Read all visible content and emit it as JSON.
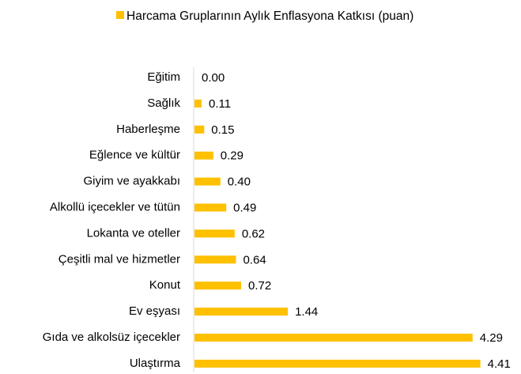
{
  "chart_data": {
    "type": "bar",
    "orientation": "horizontal",
    "categories": [
      "Eğitim",
      "Sağlık",
      "Haberleşme",
      "Eğlence ve kültür",
      "Giyim ve ayakkabı",
      "Alkollü içecekler ve tütün",
      "Lokanta ve oteller",
      "Çeşitli mal ve hizmetler",
      "Konut",
      "Ev eşyası",
      "Gıda ve alkolsüz içecekler",
      "Ulaştırma"
    ],
    "series": [
      {
        "name": "Harcama Gruplarının Aylık Enflasyona Katkısı (puan)",
        "color": "#FFC000",
        "values": [
          0,
          0.11,
          0.15,
          0.29,
          0.4,
          0.49,
          0.62,
          0.64,
          0.72,
          1.44,
          4.29,
          4.41
        ],
        "value_labels": [
          "0.00",
          "0.11",
          "0.15",
          "0.29",
          "0.40",
          "0.49",
          "0.62",
          "0.64",
          "0.72",
          "1.44",
          "4.29",
          "4.41"
        ]
      }
    ],
    "legend": "top"
  }
}
